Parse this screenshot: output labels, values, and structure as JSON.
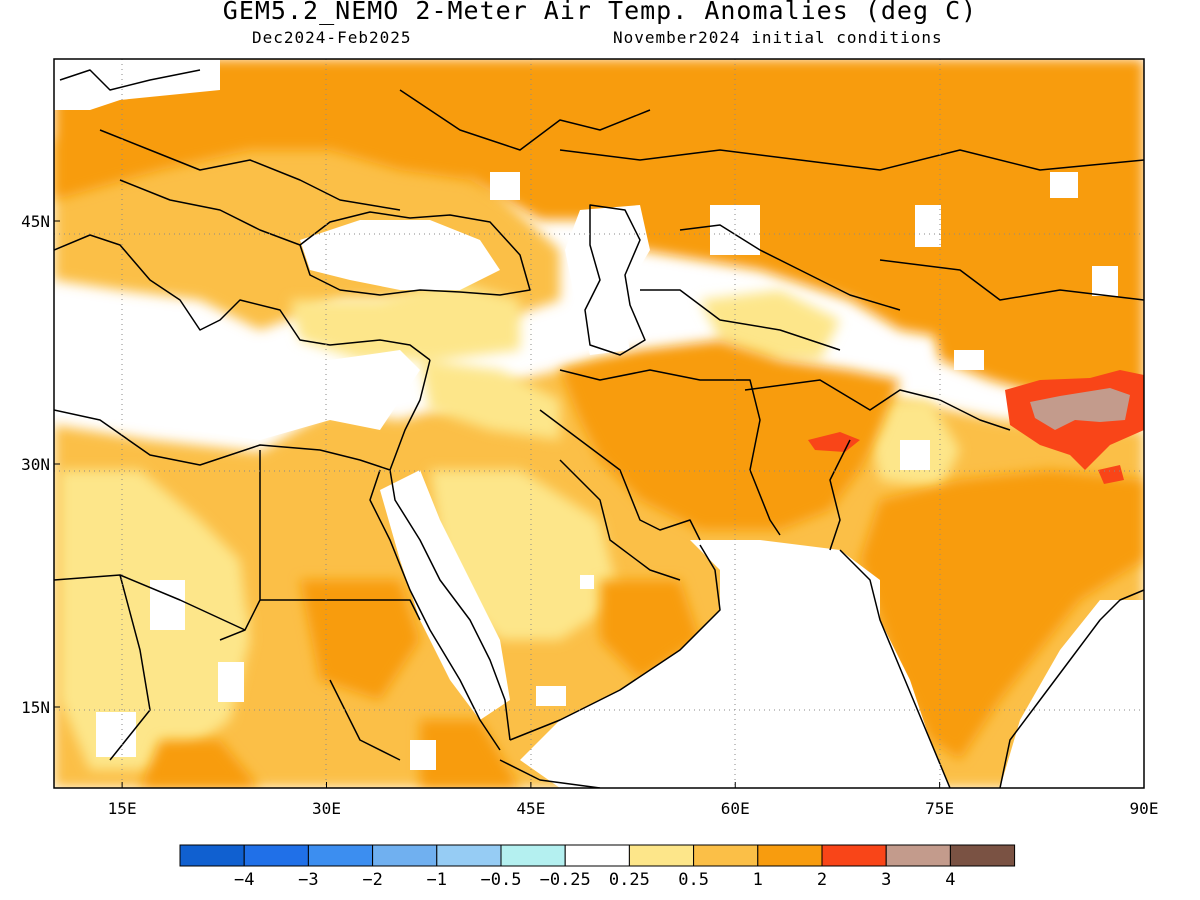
{
  "title": "GEM5.2_NEMO 2-Meter Air Temp. Anomalies (deg C)",
  "subtitle_left": "Dec2024-Feb2025",
  "subtitle_right": "November2024 initial conditions",
  "map": {
    "lon_range": [
      10,
      90
    ],
    "lat_range": [
      10,
      55
    ],
    "x_ticks": [
      "15E",
      "30E",
      "45E",
      "60E",
      "75E",
      "90E"
    ],
    "x_tick_values": [
      15,
      30,
      45,
      60,
      75,
      90
    ],
    "y_ticks": [
      "15N",
      "30N",
      "45N"
    ],
    "y_tick_values": [
      15,
      30,
      45
    ],
    "grid": "dotted"
  },
  "colorbar": {
    "colors": [
      "#1060d0",
      "#2070e8",
      "#3c8ef0",
      "#70b0f0",
      "#96ccf4",
      "#b4f0f0",
      "#ffffff",
      "#fde68a",
      "#fbbf47",
      "#f89c0e",
      "#f94518",
      "#c39b8c",
      "#7a5243"
    ],
    "labels": [
      "−4",
      "−3",
      "−2",
      "−1",
      "−0.5",
      "−0.25",
      "0.25",
      "0.5",
      "1",
      "2",
      "3",
      "4"
    ]
  }
}
